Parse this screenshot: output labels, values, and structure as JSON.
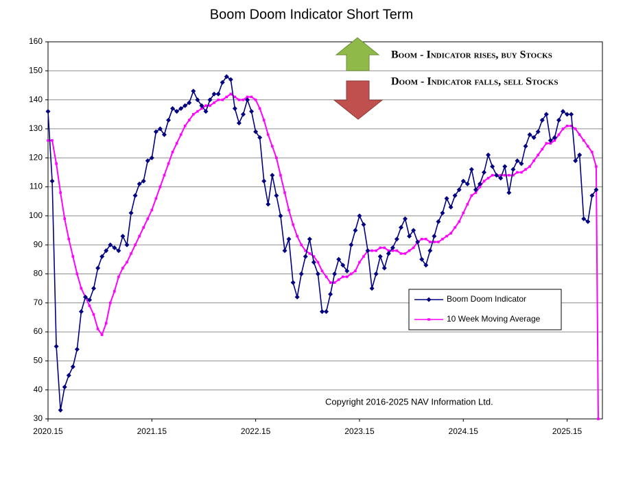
{
  "chart_data": {
    "type": "line",
    "title": "Boom Doom Indicator Short Term",
    "annotations": [
      "Boom - Indicator rises, buy Stocks",
      "Doom - Indicator falls, sell Stocks",
      "Copyright 2016-2025 NAV Information  Ltd."
    ],
    "xlim": [
      2020.15,
      2025.49
    ],
    "xticks": [
      2020.15,
      2021.15,
      2022.15,
      2023.15,
      2024.15,
      2025.15
    ],
    "ylim": [
      30,
      160
    ],
    "yticks": [
      30,
      40,
      50,
      60,
      70,
      80,
      90,
      100,
      110,
      120,
      130,
      140,
      150,
      160
    ],
    "grid": true,
    "legend": "right",
    "x": [
      2020.15,
      2020.19,
      2020.23,
      2020.27,
      2020.31,
      2020.35,
      2020.39,
      2020.43,
      2020.47,
      2020.51,
      2020.55,
      2020.59,
      2020.63,
      2020.67,
      2020.71,
      2020.75,
      2020.79,
      2020.83,
      2020.87,
      2020.91,
      2020.95,
      2020.99,
      2021.03,
      2021.07,
      2021.11,
      2021.15,
      2021.19,
      2021.23,
      2021.27,
      2021.31,
      2021.35,
      2021.39,
      2021.43,
      2021.47,
      2021.51,
      2021.55,
      2021.59,
      2021.63,
      2021.67,
      2021.71,
      2021.75,
      2021.79,
      2021.83,
      2021.87,
      2021.91,
      2021.95,
      2021.99,
      2022.03,
      2022.07,
      2022.11,
      2022.15,
      2022.19,
      2022.23,
      2022.27,
      2022.31,
      2022.35,
      2022.39,
      2022.43,
      2022.47,
      2022.51,
      2022.55,
      2022.59,
      2022.63,
      2022.67,
      2022.71,
      2022.75,
      2022.79,
      2022.83,
      2022.87,
      2022.91,
      2022.95,
      2022.99,
      2023.03,
      2023.07,
      2023.11,
      2023.15,
      2023.19,
      2023.23,
      2023.27,
      2023.31,
      2023.35,
      2023.39,
      2023.43,
      2023.47,
      2023.51,
      2023.55,
      2023.59,
      2023.63,
      2023.67,
      2023.71,
      2023.75,
      2023.79,
      2023.83,
      2023.87,
      2023.91,
      2023.95,
      2023.99,
      2024.03,
      2024.07,
      2024.11,
      2024.15,
      2024.19,
      2024.23,
      2024.27,
      2024.31,
      2024.35,
      2024.39,
      2024.43,
      2024.47,
      2024.51,
      2024.55,
      2024.59,
      2024.63,
      2024.67,
      2024.71,
      2024.75,
      2024.79,
      2024.83,
      2024.87,
      2024.91,
      2024.95,
      2024.99,
      2025.03,
      2025.07,
      2025.11,
      2025.15,
      2025.19,
      2025.23,
      2025.27,
      2025.31,
      2025.35,
      2025.39,
      2025.43,
      2025.45
    ],
    "series": [
      {
        "name": "Boom Doom Indicator",
        "color": "#000080",
        "marker": "diamond",
        "values": [
          136,
          112,
          55,
          33,
          41,
          45,
          48,
          54,
          67,
          72,
          71,
          75,
          82,
          86,
          88,
          90,
          89,
          88,
          93,
          90,
          101,
          107,
          111,
          112,
          119,
          120,
          129,
          130,
          128,
          133,
          137,
          136,
          137,
          138,
          139,
          143,
          140,
          138,
          136,
          140,
          142,
          142,
          146,
          148,
          147,
          137,
          132,
          135,
          140,
          136,
          129,
          127,
          112,
          104,
          114,
          107,
          100,
          88,
          92,
          77,
          72,
          80,
          86,
          92,
          84,
          80,
          67,
          67,
          73,
          80,
          85,
          83,
          81,
          90,
          95,
          100,
          97,
          88,
          75,
          80,
          86,
          82,
          87,
          89,
          92,
          96,
          99,
          93,
          95,
          91,
          85,
          83,
          88,
          93,
          98,
          101,
          106,
          103,
          107,
          109,
          112,
          111,
          116,
          109,
          111,
          115,
          121,
          117,
          114,
          113,
          117,
          108,
          116,
          119,
          118,
          124,
          128,
          127,
          129,
          133,
          135,
          126,
          127,
          133,
          136,
          135,
          135,
          119,
          121,
          99,
          98,
          107,
          109,
          null
        ]
      },
      {
        "name": "10 Week Moving Average",
        "color": "#ff00ff",
        "marker": "square",
        "values": [
          126,
          126,
          118,
          108,
          99,
          92,
          86,
          80,
          75,
          72,
          69,
          66,
          61,
          59,
          63,
          70,
          74,
          79,
          82,
          84,
          87,
          90,
          93,
          96,
          99,
          102,
          106,
          110,
          114,
          118,
          122,
          125,
          128,
          131,
          133,
          135,
          136,
          137,
          138,
          138,
          139,
          140,
          140,
          141,
          142,
          141,
          140,
          140,
          141,
          141,
          140,
          137,
          133,
          128,
          124,
          120,
          114,
          108,
          102,
          97,
          93,
          90,
          88,
          87,
          86,
          84,
          81,
          79,
          77,
          77,
          78,
          79,
          79,
          80,
          81,
          84,
          86,
          88,
          88,
          88,
          89,
          89,
          88,
          88,
          88,
          87,
          87,
          88,
          89,
          91,
          92,
          92,
          91,
          91,
          91,
          92,
          93,
          94,
          96,
          98,
          101,
          104,
          107,
          108,
          110,
          112,
          113,
          114,
          114,
          114,
          114,
          114,
          114,
          115,
          115,
          116,
          117,
          119,
          121,
          123,
          125,
          125,
          126,
          128,
          130,
          131,
          131,
          130,
          128,
          126,
          124,
          122,
          117,
          30
        ]
      }
    ]
  }
}
